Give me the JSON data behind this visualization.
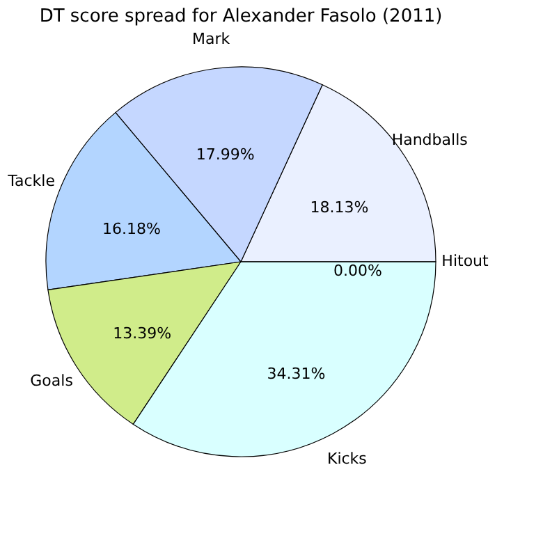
{
  "chart_data": {
    "type": "pie",
    "title": "DT score spread for Alexander Fasolo (2011)",
    "categories": [
      "Handballs",
      "Mark",
      "Tackle",
      "Goals",
      "Kicks",
      "Hitout"
    ],
    "values": [
      18.13,
      17.99,
      16.18,
      13.39,
      34.31,
      0.0
    ],
    "colors": [
      "#eaf0ff",
      "#c5d7ff",
      "#b3d5ff",
      "#d0ec8a",
      "#d9ffff",
      "#ffe4b5"
    ],
    "value_labels": [
      "18.13%",
      "17.99%",
      "16.18%",
      "13.39%",
      "34.31%",
      "0.00%"
    ],
    "legend": false
  }
}
